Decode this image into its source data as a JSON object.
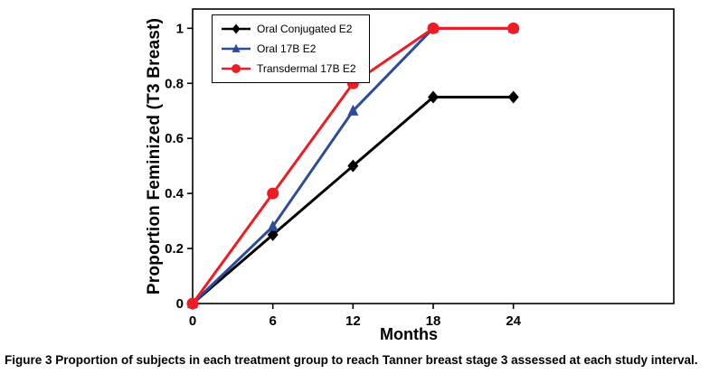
{
  "figure": {
    "caption_label": "Figure 3",
    "caption_text": "Proportion of subjects in each treatment group to reach Tanner breast stage 3 assessed at each study interval."
  },
  "chart_data": {
    "type": "line",
    "x": [
      0,
      6,
      12,
      18,
      24
    ],
    "series": [
      {
        "name": "Oral Conjugated E2",
        "color": "#000000",
        "marker": "diamond",
        "values": [
          0,
          0.25,
          0.5,
          0.75,
          0.75
        ]
      },
      {
        "name": "Oral 17B E2",
        "color": "#2A4C9B",
        "marker": "triangle",
        "values": [
          0,
          0.28,
          0.7,
          1,
          1
        ]
      },
      {
        "name": "Transdermal 17B E2",
        "color": "#EE1C25",
        "marker": "circle",
        "values": [
          0,
          0.4,
          0.8,
          1,
          1
        ]
      }
    ],
    "xlabel": "Months",
    "ylabel": "Proportion Feminized (T3 Breast)",
    "xlim": [
      0,
      36
    ],
    "ylim": [
      0,
      1.07
    ],
    "xticks": [
      0,
      6,
      12,
      18,
      24
    ],
    "yticks": [
      0,
      0.2,
      0.4,
      0.6,
      0.8,
      1
    ],
    "grid": false,
    "legend_position": "top-left"
  }
}
